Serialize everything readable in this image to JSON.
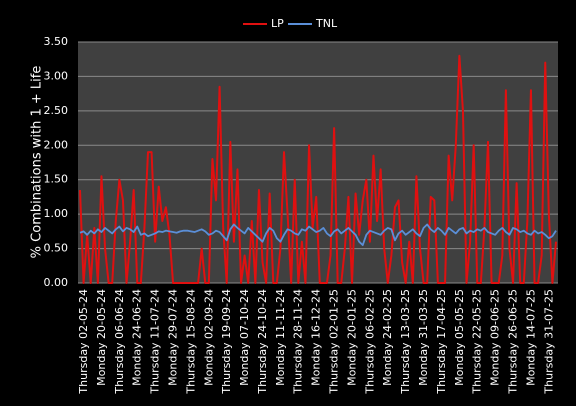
{
  "chart_data": {
    "type": "line",
    "ylabel": "% Combinations with 1 + Life",
    "categories": [
      "Thursday  02-05-24",
      null,
      null,
      null,
      null,
      "Monday  20-05-24",
      null,
      null,
      null,
      null,
      "Thursday  06-06-24",
      null,
      null,
      null,
      null,
      "Monday  24-06-24",
      null,
      null,
      null,
      null,
      "Thursday  11-07-24",
      null,
      null,
      null,
      null,
      "Monday  29-07-24",
      null,
      null,
      null,
      null,
      "Thursday  15-08-24",
      null,
      null,
      null,
      null,
      "Monday  02-09-24",
      null,
      null,
      null,
      null,
      "Thursday  19-09-24",
      null,
      null,
      null,
      null,
      "Monday  07-10-24",
      null,
      null,
      null,
      null,
      "Thursday  24-10-24",
      null,
      null,
      null,
      null,
      "Monday  11-11-24",
      null,
      null,
      null,
      null,
      "Thursday  28-11-24",
      null,
      null,
      null,
      null,
      "Monday  16-12-24",
      null,
      null,
      null,
      null,
      "Thursday  02-01-25",
      null,
      null,
      null,
      null,
      "Monday  20-01-25",
      null,
      null,
      null,
      null,
      "Thursday  06-02-25",
      null,
      null,
      null,
      null,
      "Monday  24-02-25",
      null,
      null,
      null,
      null,
      "Thursday  13-03-25",
      null,
      null,
      null,
      null,
      "Monday  31-03-25",
      null,
      null,
      null,
      null,
      "Thursday  17-04-25",
      null,
      null,
      null,
      null,
      "Monday  05-05-25",
      null,
      null,
      null,
      null,
      "Thursday  22-05-25",
      null,
      null,
      null,
      null,
      "Monday  09-06-25",
      null,
      null,
      null,
      null,
      "Thursday  26-06-25",
      null,
      null,
      null,
      null,
      "Monday  14-07-25",
      null,
      null,
      null,
      null,
      "Thursday  31-07-25",
      null,
      null,
      null
    ],
    "series": [
      {
        "name": "LP",
        "color": "#e01010",
        "values": [
          1.35,
          0,
          0.7,
          0,
          0.8,
          0,
          1.55,
          0.5,
          0,
          0,
          0.9,
          1.5,
          1.2,
          0,
          0.6,
          1.35,
          0,
          0,
          0.8,
          1.9,
          1.9,
          0.6,
          1.4,
          0.9,
          1.1,
          0.7,
          0,
          0,
          0,
          0,
          0,
          0,
          0,
          0,
          0.5,
          0,
          0,
          1.8,
          1.2,
          2.85,
          0.8,
          0,
          2.05,
          0.6,
          1.65,
          0,
          0.4,
          0,
          0.9,
          0,
          1.35,
          0.3,
          0,
          1.3,
          0,
          0,
          0.5,
          1.9,
          1.0,
          0,
          1.5,
          0,
          0.6,
          0,
          2.0,
          0.8,
          1.25,
          0,
          0,
          0,
          0.4,
          2.25,
          0,
          0,
          0.5,
          1.25,
          0,
          1.3,
          0.7,
          1.2,
          1.5,
          0.6,
          1.85,
          0.9,
          1.65,
          0.5,
          0,
          0.4,
          1.1,
          1.2,
          0.3,
          0,
          0.6,
          0,
          1.55,
          0.5,
          0,
          0,
          1.25,
          1.2,
          0,
          0,
          0,
          1.85,
          1.2,
          2.0,
          3.3,
          2.5,
          0,
          0.6,
          2.0,
          0,
          0,
          0.8,
          2.05,
          0,
          0,
          0,
          0.4,
          2.8,
          0.5,
          0,
          1.45,
          0,
          0,
          0.9,
          2.8,
          0,
          0,
          0.4,
          3.2,
          1.0,
          0,
          0.6
        ]
      },
      {
        "name": "TNL",
        "color": "#5b8fd8",
        "values": [
          0.73,
          0.75,
          0.7,
          0.76,
          0.72,
          0.78,
          0.74,
          0.8,
          0.76,
          0.72,
          0.78,
          0.82,
          0.75,
          0.8,
          0.78,
          0.74,
          0.82,
          0.7,
          0.72,
          0.68,
          0.7,
          0.72,
          0.75,
          0.74,
          0.76,
          0.75,
          0.74,
          0.73,
          0.75,
          0.76,
          0.76,
          0.75,
          0.74,
          0.76,
          0.78,
          0.75,
          0.7,
          0.72,
          0.76,
          0.74,
          0.68,
          0.62,
          0.78,
          0.85,
          0.8,
          0.76,
          0.72,
          0.8,
          0.75,
          0.7,
          0.65,
          0.6,
          0.72,
          0.8,
          0.76,
          0.65,
          0.6,
          0.7,
          0.78,
          0.76,
          0.72,
          0.7,
          0.78,
          0.76,
          0.82,
          0.78,
          0.74,
          0.76,
          0.8,
          0.72,
          0.68,
          0.75,
          0.78,
          0.72,
          0.76,
          0.8,
          0.75,
          0.7,
          0.6,
          0.55,
          0.7,
          0.76,
          0.74,
          0.72,
          0.7,
          0.76,
          0.8,
          0.78,
          0.62,
          0.72,
          0.76,
          0.7,
          0.74,
          0.78,
          0.72,
          0.68,
          0.8,
          0.85,
          0.78,
          0.74,
          0.8,
          0.76,
          0.7,
          0.8,
          0.76,
          0.72,
          0.78,
          0.8,
          0.72,
          0.76,
          0.74,
          0.78,
          0.76,
          0.8,
          0.74,
          0.72,
          0.7,
          0.76,
          0.8,
          0.74,
          0.7,
          0.8,
          0.78,
          0.74,
          0.76,
          0.72,
          0.7,
          0.76,
          0.72,
          0.74,
          0.7,
          0.65,
          0.68,
          0.76
        ]
      }
    ],
    "ylim": [
      0,
      3.5
    ],
    "yticks": [
      {
        "value": 0,
        "label": "0.00"
      },
      {
        "value": 0.5,
        "label": "0.50"
      },
      {
        "value": 1,
        "label": "1.00"
      },
      {
        "value": 1.5,
        "label": "1.50"
      },
      {
        "value": 2,
        "label": "2.00"
      },
      {
        "value": 2.5,
        "label": "2.50"
      },
      {
        "value": 3,
        "label": "3.00"
      },
      {
        "value": 3.5,
        "label": "3.50"
      }
    ],
    "grid": true,
    "legend": "top"
  }
}
